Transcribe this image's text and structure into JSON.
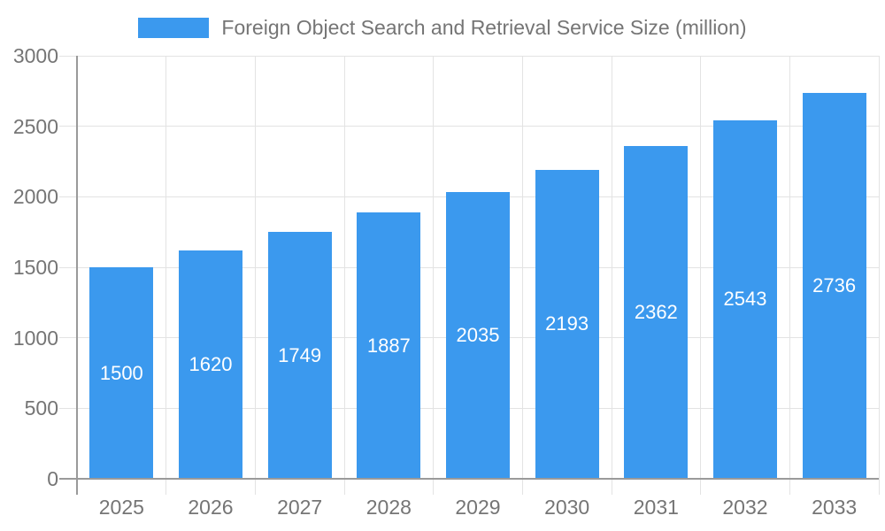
{
  "chart_data": {
    "type": "bar",
    "title": "Foreign Object Search and Retrieval Service Size (million)",
    "categories": [
      "2025",
      "2026",
      "2027",
      "2028",
      "2029",
      "2030",
      "2031",
      "2032",
      "2033"
    ],
    "values": [
      1500,
      1620,
      1749,
      1887,
      2035,
      2193,
      2362,
      2543,
      2736
    ],
    "yticks": [
      0,
      500,
      1000,
      1500,
      2000,
      2500,
      3000
    ],
    "ylim": [
      0,
      3000
    ],
    "xlabel": "",
    "ylabel": "",
    "legend_position": "top-center",
    "grid": true,
    "value_labels": "inside-center",
    "colors": {
      "bar": "#3b99ee",
      "axis_label_text": "#757575",
      "value_label_text": "#ffffff",
      "gridline": "#e3e3e3",
      "axis_line": "#9a9a9a",
      "background": "#ffffff"
    }
  }
}
